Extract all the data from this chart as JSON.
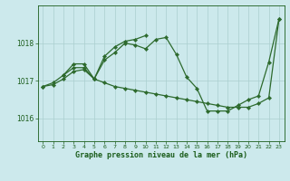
{
  "background_color": "#cce9ec",
  "plot_bg_color": "#cce9ec",
  "line_color": "#2d6a2d",
  "grid_color": "#aacfcf",
  "xlabel": "Graphe pression niveau de la mer (hPa)",
  "xlabel_color": "#1a5c1a",
  "tick_color": "#1a5c1a",
  "ylabel_ticks": [
    1016,
    1017,
    1018
  ],
  "xlim": [
    -0.5,
    23.5
  ],
  "ylim": [
    1015.4,
    1019.0
  ],
  "figsize": [
    3.2,
    2.0
  ],
  "dpi": 100,
  "series1": {
    "x": [
      0,
      1,
      2,
      3,
      4,
      5,
      6,
      7,
      8,
      9,
      10,
      11,
      12,
      13,
      14,
      15,
      16,
      17,
      18,
      19,
      20,
      21,
      22,
      23
    ],
    "y": [
      1016.85,
      1016.95,
      1017.15,
      1017.35,
      1017.35,
      1017.05,
      1017.55,
      1017.75,
      1018.0,
      1017.95,
      1017.85,
      1018.1,
      1018.15,
      1017.7,
      1017.1,
      1016.8,
      1016.2,
      1016.2,
      1016.2,
      1016.35,
      1016.5,
      1016.6,
      1017.5,
      1018.65
    ]
  },
  "series2": {
    "x": [
      0,
      1,
      2,
      3,
      4,
      5,
      6,
      7,
      8,
      9,
      10,
      11,
      12,
      13,
      14,
      15,
      16,
      17,
      18,
      19,
      20,
      21,
      22,
      23
    ],
    "y": [
      1016.85,
      1016.9,
      1017.05,
      1017.25,
      1017.3,
      1017.05,
      1016.95,
      1016.85,
      1016.8,
      1016.75,
      1016.7,
      1016.65,
      1016.6,
      1016.55,
      1016.5,
      1016.45,
      1016.4,
      1016.35,
      1016.3,
      1016.3,
      1016.3,
      1016.4,
      1016.55,
      1018.65
    ]
  },
  "series3": {
    "x": [
      2,
      3,
      4,
      5,
      6,
      7,
      8,
      9,
      10
    ],
    "y": [
      1017.15,
      1017.45,
      1017.45,
      1017.05,
      1017.65,
      1017.9,
      1018.05,
      1018.1,
      1018.2
    ]
  }
}
